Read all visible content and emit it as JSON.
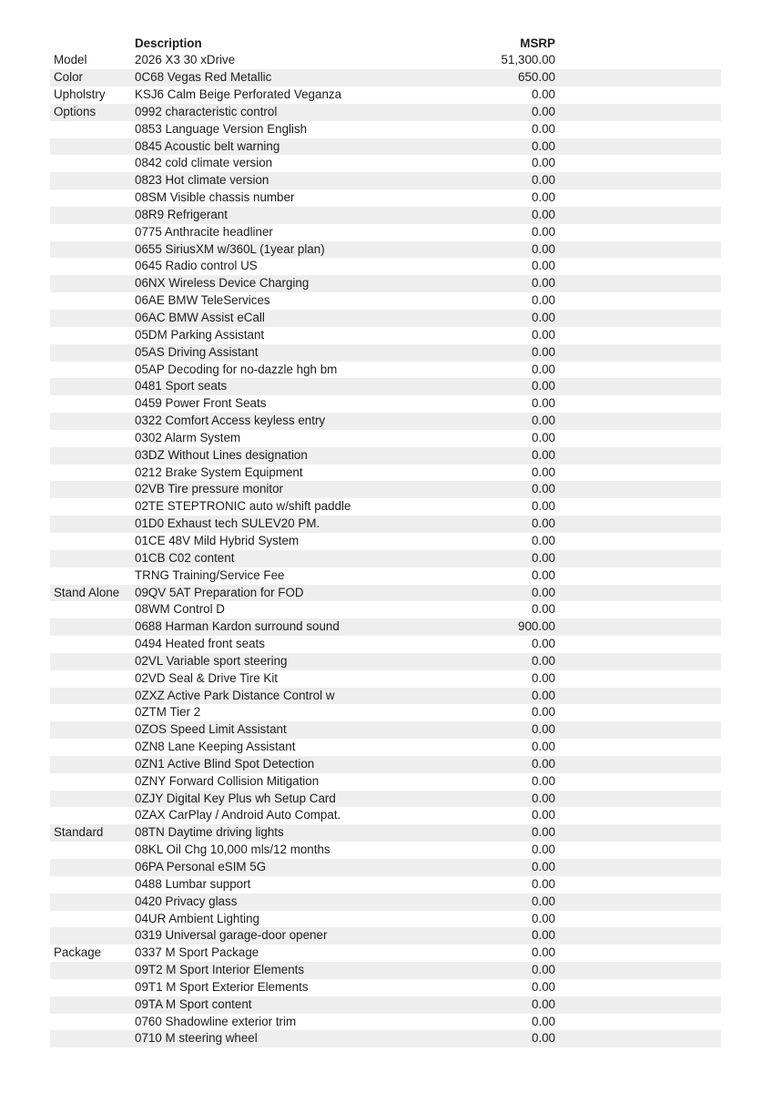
{
  "page": {
    "background_color": "#ffffff",
    "text_color": "#1c1c1c",
    "zebra_row_color": "#eeeeee"
  },
  "table": {
    "columns": {
      "section": "",
      "description": "Description",
      "msrp": "MSRP"
    },
    "rows": [
      {
        "section": "Model",
        "description": "2026 X3 30 xDrive",
        "msrp": "51,300.00"
      },
      {
        "section": "Color",
        "description": "0C68 Vegas Red Metallic",
        "msrp": "650.00"
      },
      {
        "section": "Upholstry",
        "description": "KSJ6 Calm Beige Perforated Veganza",
        "msrp": "0.00"
      },
      {
        "section": "Options",
        "description": "0992 characteristic control",
        "msrp": "0.00"
      },
      {
        "section": "",
        "description": "0853 Language Version English",
        "msrp": "0.00"
      },
      {
        "section": "",
        "description": "0845 Acoustic belt warning",
        "msrp": "0.00"
      },
      {
        "section": "",
        "description": "0842 cold climate version",
        "msrp": "0.00"
      },
      {
        "section": "",
        "description": "0823 Hot climate version",
        "msrp": "0.00"
      },
      {
        "section": "",
        "description": "08SM Visible chassis number",
        "msrp": "0.00"
      },
      {
        "section": "",
        "description": "08R9 Refrigerant",
        "msrp": "0.00"
      },
      {
        "section": "",
        "description": "0775 Anthracite headliner",
        "msrp": "0.00"
      },
      {
        "section": "",
        "description": "0655 SiriusXM w/360L (1year plan)",
        "msrp": "0.00"
      },
      {
        "section": "",
        "description": "0645 Radio control US",
        "msrp": "0.00"
      },
      {
        "section": "",
        "description": "06NX Wireless Device Charging",
        "msrp": "0.00"
      },
      {
        "section": "",
        "description": "06AE BMW TeleServices",
        "msrp": "0.00"
      },
      {
        "section": "",
        "description": "06AC BMW Assist eCall",
        "msrp": "0.00"
      },
      {
        "section": "",
        "description": "05DM Parking Assistant",
        "msrp": "0.00"
      },
      {
        "section": "",
        "description": "05AS Driving Assistant",
        "msrp": "0.00"
      },
      {
        "section": "",
        "description": "05AP Decoding for no-dazzle hgh bm",
        "msrp": "0.00"
      },
      {
        "section": "",
        "description": "0481 Sport seats",
        "msrp": "0.00"
      },
      {
        "section": "",
        "description": "0459 Power Front Seats",
        "msrp": "0.00"
      },
      {
        "section": "",
        "description": "0322 Comfort Access keyless entry",
        "msrp": "0.00"
      },
      {
        "section": "",
        "description": "0302 Alarm System",
        "msrp": "0.00"
      },
      {
        "section": "",
        "description": "03DZ Without Lines designation",
        "msrp": "0.00"
      },
      {
        "section": "",
        "description": "0212 Brake System Equipment",
        "msrp": "0.00"
      },
      {
        "section": "",
        "description": "02VB Tire pressure monitor",
        "msrp": "0.00"
      },
      {
        "section": "",
        "description": "02TE STEPTRONIC auto w/shift paddle",
        "msrp": "0.00"
      },
      {
        "section": "",
        "description": "01D0 Exhaust tech SULEV20 PM.",
        "msrp": "0.00"
      },
      {
        "section": "",
        "description": "01CE 48V Mild Hybrid System",
        "msrp": "0.00"
      },
      {
        "section": "",
        "description": "01CB C02 content",
        "msrp": "0.00"
      },
      {
        "section": "",
        "description": "TRNG Training/Service Fee",
        "msrp": "0.00"
      },
      {
        "section": "Stand Alone",
        "description": "09QV 5AT Preparation for FOD",
        "msrp": "0.00"
      },
      {
        "section": "",
        "description": "08WM Control D",
        "msrp": "0.00"
      },
      {
        "section": "",
        "description": "0688 Harman Kardon surround sound",
        "msrp": "900.00"
      },
      {
        "section": "",
        "description": "0494 Heated front seats",
        "msrp": "0.00"
      },
      {
        "section": "",
        "description": "02VL Variable sport steering",
        "msrp": "0.00"
      },
      {
        "section": "",
        "description": "02VD Seal & Drive Tire Kit",
        "msrp": "0.00"
      },
      {
        "section": "",
        "description": "0ZXZ Active Park Distance Control w",
        "msrp": "0.00"
      },
      {
        "section": "",
        "description": "0ZTM Tier 2",
        "msrp": "0.00"
      },
      {
        "section": "",
        "description": "0ZOS Speed Limit Assistant",
        "msrp": "0.00"
      },
      {
        "section": "",
        "description": "0ZN8 Lane Keeping Assistant",
        "msrp": "0.00"
      },
      {
        "section": "",
        "description": "0ZN1 Active Blind Spot Detection",
        "msrp": "0.00"
      },
      {
        "section": "",
        "description": "0ZNY Forward Collision Mitigation",
        "msrp": "0.00"
      },
      {
        "section": "",
        "description": "0ZJY Digital Key Plus wh Setup Card",
        "msrp": "0.00"
      },
      {
        "section": "",
        "description": "0ZAX CarPlay / Android Auto Compat.",
        "msrp": "0.00"
      },
      {
        "section": "Standard",
        "description": "08TN Daytime driving lights",
        "msrp": "0.00"
      },
      {
        "section": "",
        "description": "08KL Oil Chg 10,000 mls/12 months",
        "msrp": "0.00"
      },
      {
        "section": "",
        "description": "06PA Personal eSIM 5G",
        "msrp": "0.00"
      },
      {
        "section": "",
        "description": "0488 Lumbar support",
        "msrp": "0.00"
      },
      {
        "section": "",
        "description": "0420 Privacy glass",
        "msrp": "0.00"
      },
      {
        "section": "",
        "description": "04UR Ambient Lighting",
        "msrp": "0.00"
      },
      {
        "section": "",
        "description": "0319 Universal garage-door opener",
        "msrp": "0.00"
      },
      {
        "section": "Package",
        "description": "0337 M Sport Package",
        "msrp": "0.00"
      },
      {
        "section": "",
        "description": "09T2 M Sport Interior Elements",
        "msrp": "0.00"
      },
      {
        "section": "",
        "description": "09T1 M Sport Exterior Elements",
        "msrp": "0.00"
      },
      {
        "section": "",
        "description": "09TA M Sport content",
        "msrp": "0.00"
      },
      {
        "section": "",
        "description": "0760 Shadowline exterior trim",
        "msrp": "0.00"
      },
      {
        "section": "",
        "description": "0710 M steering wheel",
        "msrp": "0.00"
      }
    ]
  }
}
